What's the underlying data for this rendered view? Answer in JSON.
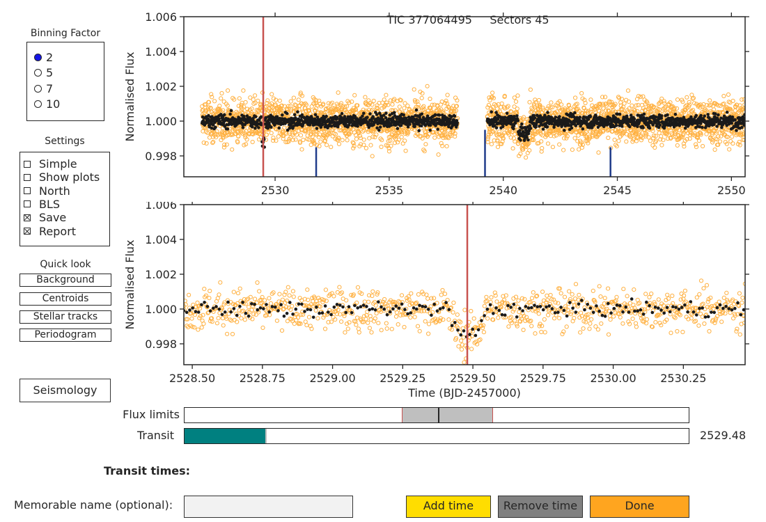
{
  "title": {
    "tic": "TIC 377064495",
    "sectors": "Sectors 45"
  },
  "binning": {
    "label": "Binning Factor",
    "options": [
      "2",
      "5",
      "7",
      "10"
    ],
    "selected": "2"
  },
  "settings": {
    "label": "Settings",
    "items": [
      {
        "label": "Simple",
        "checked": false
      },
      {
        "label": "Show plots",
        "checked": false
      },
      {
        "label": "North",
        "checked": false
      },
      {
        "label": "BLS",
        "checked": false
      },
      {
        "label": "Save",
        "checked": true
      },
      {
        "label": "Report",
        "checked": true
      }
    ]
  },
  "quicklook": {
    "label": "Quick look",
    "buttons": [
      "Background",
      "Centroids",
      "Stellar tracks",
      "Periodogram"
    ]
  },
  "seismology_label": "Seismology",
  "colors": {
    "raw": "#ffb142",
    "binned": "#1a1a1a",
    "transit_line": "#c8524f",
    "marker": "#1f3b8a",
    "teal": "#008080",
    "yellow": "#ffdd00",
    "gray": "#808080",
    "orange": "#ffa51f"
  },
  "chart_data": [
    {
      "type": "scatter",
      "title": "TIC 377064495     Sectors 45",
      "xlabel": "",
      "ylabel": "Normalised Flux",
      "xlim": [
        2526.0,
        2550.6
      ],
      "ylim": [
        0.9968,
        1.006
      ],
      "xticks": [
        2530,
        2535,
        2540,
        2545,
        2550
      ],
      "yticks": [
        0.998,
        1.0,
        1.002,
        1.004,
        1.006
      ],
      "ytick_labels": [
        "0.998",
        "1.000",
        "1.002",
        "1.004",
        "1.006"
      ],
      "segments": [
        [
          2526.8,
          2538.0
        ],
        [
          2539.3,
          2550.6
        ]
      ],
      "transit_line_x": 2529.48,
      "marker_lines": [
        {
          "x": 2531.8,
          "top": 0.9985
        },
        {
          "x": 2539.2,
          "top": 0.9995
        },
        {
          "x": 2544.7,
          "top": 0.9985
        }
      ],
      "series": [
        {
          "name": "",
          "kind": "raw",
          "mean": 1.0,
          "scatter": 0.00085
        },
        {
          "name": "",
          "kind": "binned",
          "mean": 1.0,
          "scatter": 0.00035
        }
      ]
    },
    {
      "type": "scatter",
      "title": "",
      "xlabel": "Time (BJD-2457000)",
      "ylabel": "Normalised Flux",
      "xlim": [
        2528.47,
        2530.47
      ],
      "ylim": [
        0.9968,
        1.006
      ],
      "xticks": [
        2528.5,
        2528.75,
        2529.0,
        2529.25,
        2529.5,
        2529.75,
        2530.0,
        2530.25
      ],
      "xtick_labels": [
        "2528.50",
        "2528.75",
        "2529.00",
        "2529.25",
        "2529.50",
        "2529.75",
        "2530.00",
        "2530.25"
      ],
      "yticks": [
        0.998,
        1.0,
        1.002,
        1.004,
        1.006
      ],
      "ytick_labels": [
        "0.998",
        "1.000",
        "1.002",
        "1.004",
        "1.006"
      ],
      "transit_line_x": 2529.48,
      "transit_depth": 0.0016,
      "transit_center": 2529.48,
      "transit_halfwidth": 0.07,
      "series": [
        {
          "name": "",
          "kind": "raw",
          "mean": 1.0,
          "scatter": 0.00085
        },
        {
          "name": "",
          "kind": "binned",
          "mean": 1.0,
          "scatter": 0.0003
        }
      ]
    }
  ],
  "flux_limits": {
    "label": "Flux limits",
    "low": 0.43,
    "high": 0.61,
    "mid": 0.502
  },
  "transit_slider": {
    "label": "Transit",
    "fill": 0.16,
    "value": "2529.48"
  },
  "transit_times_label": "Transit times:",
  "memorable": {
    "label": "Memorable name (optional):",
    "value": ""
  },
  "actions": {
    "add": "Add time",
    "remove": "Remove time",
    "done": "Done"
  }
}
